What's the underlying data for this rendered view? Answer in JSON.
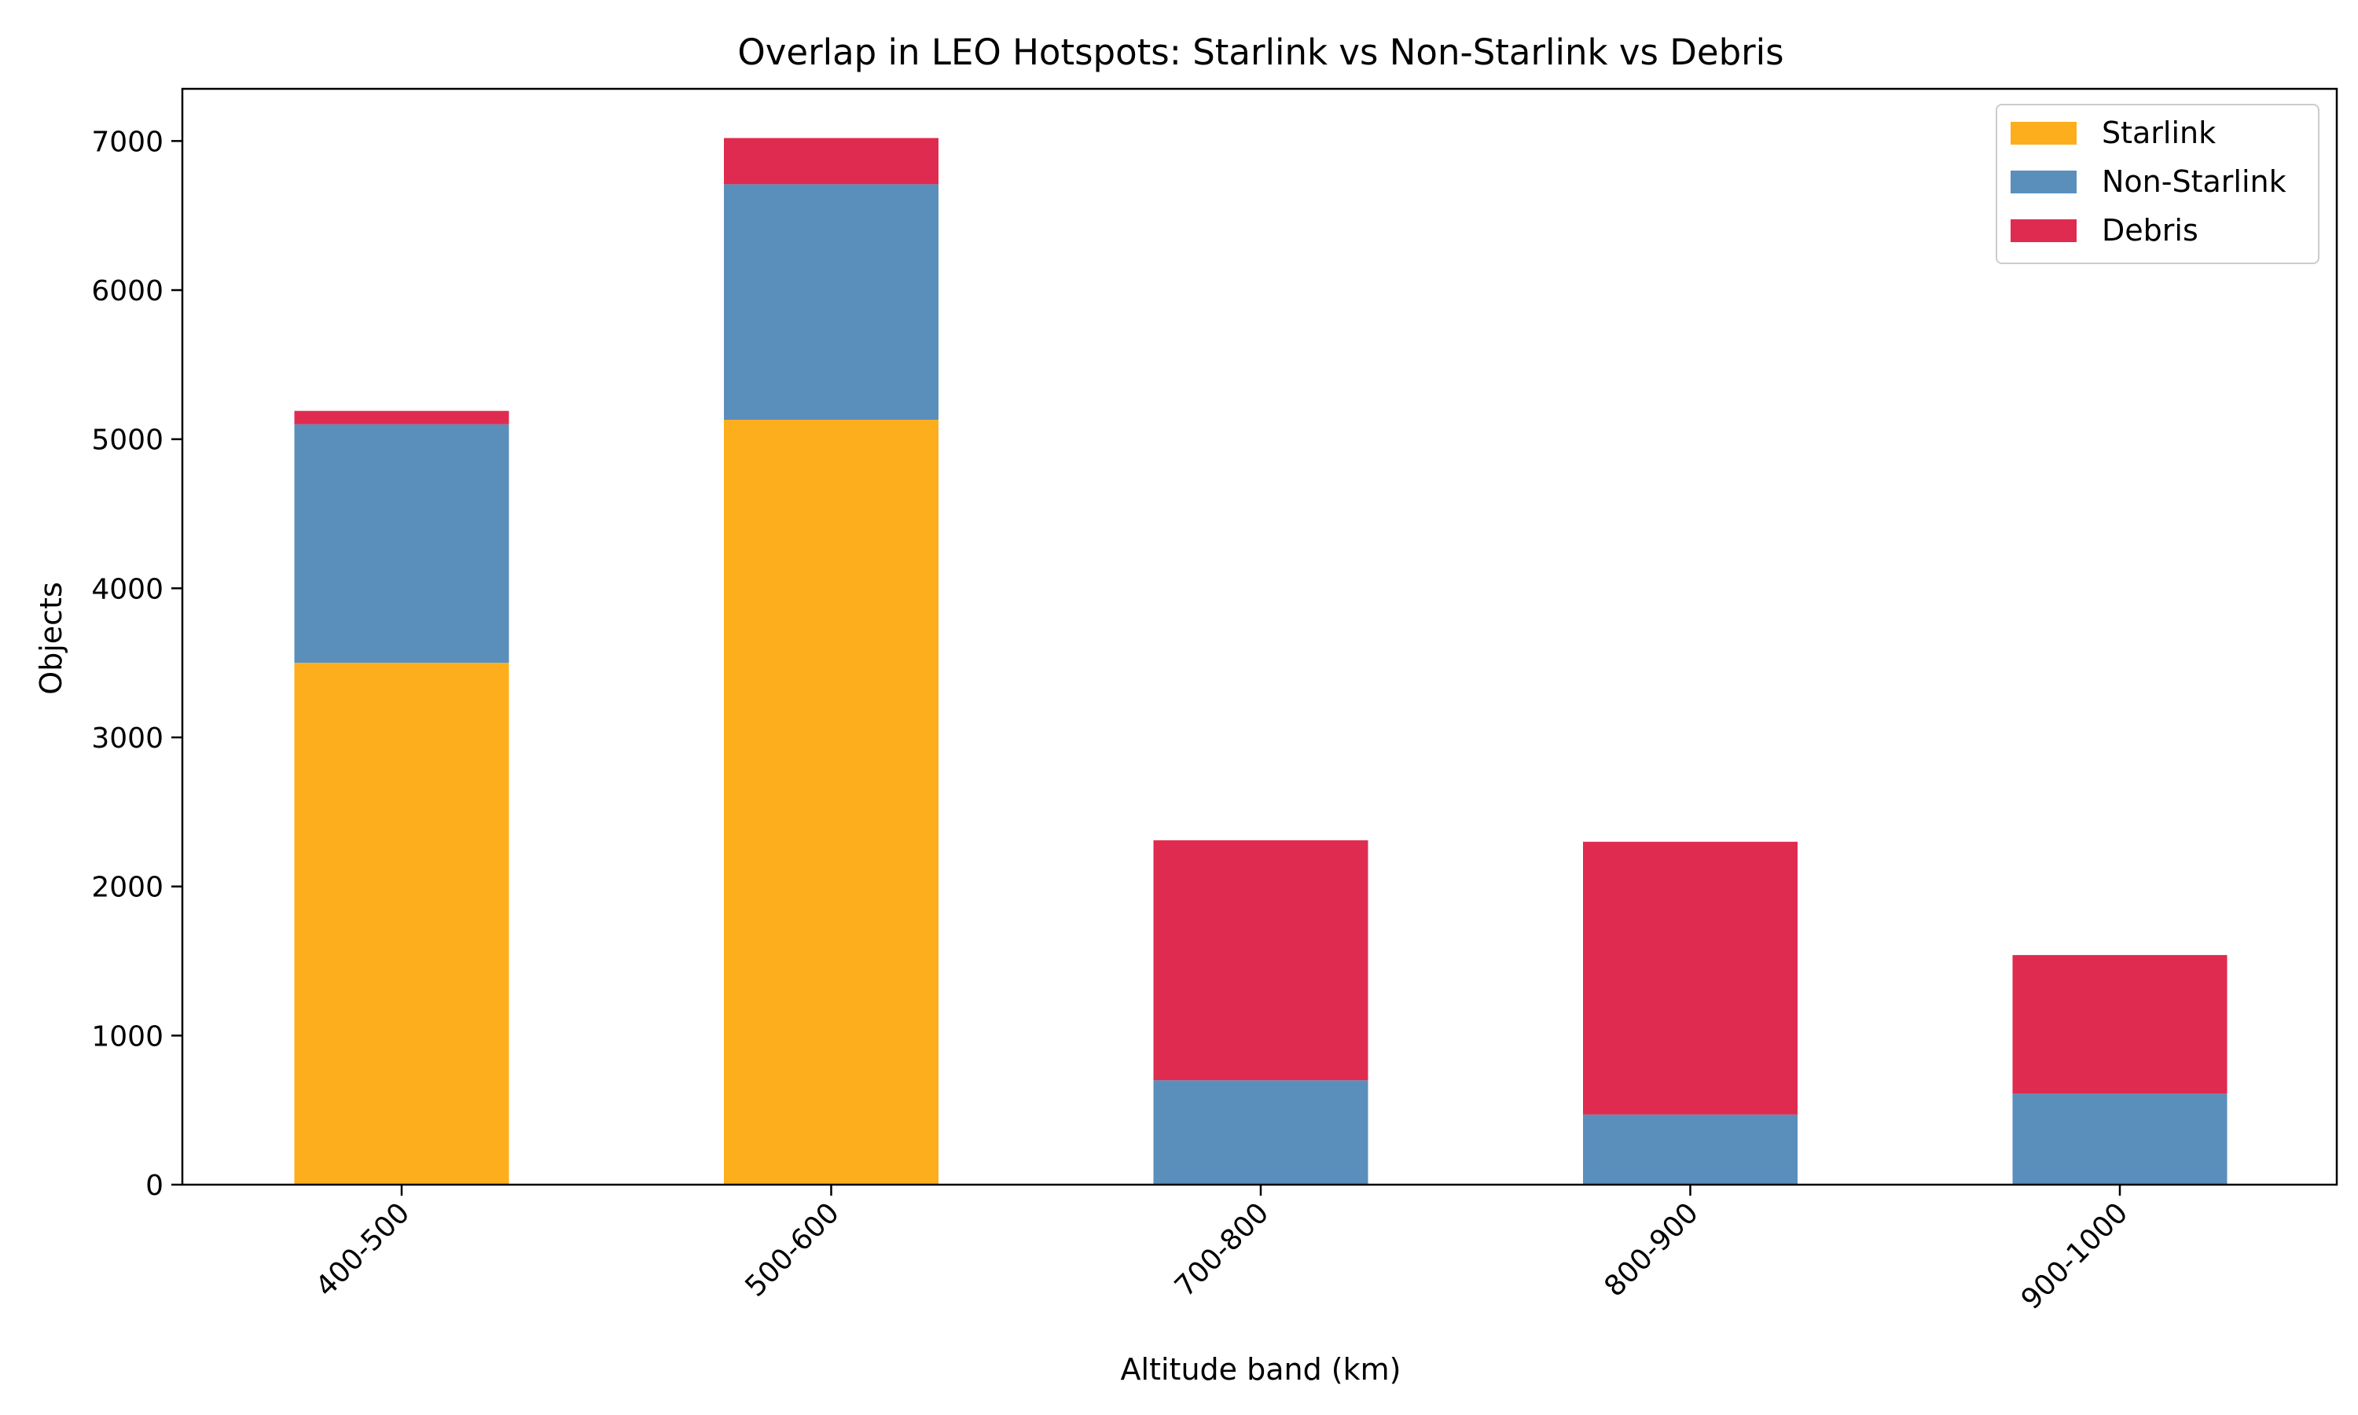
{
  "chart_data": {
    "type": "bar",
    "stacked": true,
    "title": "Overlap in LEO Hotspots: Starlink vs Non-Starlink vs Debris",
    "xlabel": "Altitude band (km)",
    "ylabel": "Objects",
    "categories": [
      "400-500",
      "500-600",
      "700-800",
      "800-900",
      "900-1000"
    ],
    "ylim": [
      0,
      7350
    ],
    "yticks": [
      0,
      1000,
      2000,
      3000,
      4000,
      5000,
      6000,
      7000
    ],
    "grid": false,
    "legend_position": "top-right",
    "series": [
      {
        "name": "Starlink",
        "color": "#FDAE1D",
        "values": [
          3500,
          5130,
          0,
          0,
          0
        ]
      },
      {
        "name": "Non-Starlink",
        "color": "#5A8FBC",
        "values": [
          1600,
          1580,
          700,
          470,
          610
        ]
      },
      {
        "name": "Debris",
        "color": "#E02B50",
        "values": [
          90,
          310,
          1610,
          1830,
          930
        ]
      }
    ]
  }
}
